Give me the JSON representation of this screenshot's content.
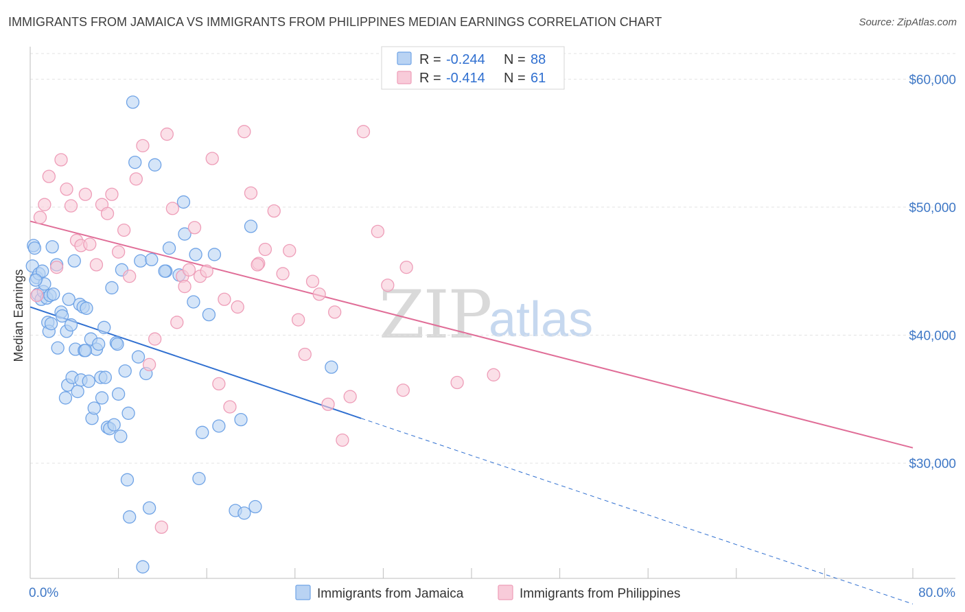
{
  "header": {
    "title": "IMMIGRANTS FROM JAMAICA VS IMMIGRANTS FROM PHILIPPINES MEDIAN EARNINGS CORRELATION CHART",
    "source": "Source: ZipAtlas.com"
  },
  "watermark": {
    "zip": "ZIP",
    "atlas": "atlas"
  },
  "chart_data": {
    "type": "scatter",
    "title": "IMMIGRANTS FROM JAMAICA VS IMMIGRANTS FROM PHILIPPINES MEDIAN EARNINGS CORRELATION CHART",
    "xlabel": "",
    "ylabel": "Median Earnings",
    "xlim": [
      0,
      80
    ],
    "ylim": [
      21000,
      62000
    ],
    "x_tick_labels": {
      "min": "0.0%",
      "max": "80.0%"
    },
    "y_ticks": [
      {
        "value": 30000,
        "label": "$30,000"
      },
      {
        "value": 40000,
        "label": "$40,000"
      },
      {
        "value": 50000,
        "label": "$50,000"
      },
      {
        "value": 60000,
        "label": "$60,000"
      }
    ],
    "grid": true,
    "legend_position": "top-center",
    "series": [
      {
        "name": "Immigrants from Jamaica",
        "color": "#6fa3e6",
        "fill": "#b9d3f3",
        "line_color": "#2f6fd0",
        "stats": {
          "r_label": "R = ",
          "r_value": "-0.244",
          "n_label": "N = ",
          "n_value": "88"
        },
        "trend": {
          "x0": 0,
          "y0": 42200,
          "x1": 30,
          "y1": 33500,
          "x_end": 80,
          "y_end": 19000
        },
        "points": [
          [
            0.2,
            45400
          ],
          [
            0.3,
            47000
          ],
          [
            0.4,
            46800
          ],
          [
            0.6,
            44500
          ],
          [
            0.7,
            43200
          ],
          [
            0.8,
            44800
          ],
          [
            1.0,
            42800
          ],
          [
            1.1,
            45000
          ],
          [
            1.2,
            43400
          ],
          [
            1.3,
            44000
          ],
          [
            1.5,
            42900
          ],
          [
            1.6,
            41000
          ],
          [
            1.7,
            40300
          ],
          [
            1.8,
            43100
          ],
          [
            2.0,
            46900
          ],
          [
            2.1,
            43200
          ],
          [
            2.4,
            45500
          ],
          [
            2.5,
            39000
          ],
          [
            2.8,
            41800
          ],
          [
            2.9,
            41500
          ],
          [
            3.2,
            35100
          ],
          [
            3.3,
            40300
          ],
          [
            3.4,
            36100
          ],
          [
            3.5,
            42800
          ],
          [
            3.7,
            40800
          ],
          [
            3.8,
            36700
          ],
          [
            4.0,
            45800
          ],
          [
            4.1,
            38900
          ],
          [
            4.3,
            35600
          ],
          [
            4.5,
            42400
          ],
          [
            4.6,
            36500
          ],
          [
            4.8,
            42200
          ],
          [
            4.9,
            38800
          ],
          [
            5.1,
            42100
          ],
          [
            5.3,
            36400
          ],
          [
            5.5,
            39700
          ],
          [
            5.6,
            33500
          ],
          [
            5.8,
            34300
          ],
          [
            6.0,
            38900
          ],
          [
            6.2,
            39300
          ],
          [
            6.4,
            36700
          ],
          [
            6.5,
            35100
          ],
          [
            6.7,
            40600
          ],
          [
            6.8,
            36700
          ],
          [
            7.0,
            32800
          ],
          [
            7.2,
            32700
          ],
          [
            7.4,
            43700
          ],
          [
            7.6,
            33000
          ],
          [
            7.8,
            39400
          ],
          [
            8.0,
            35400
          ],
          [
            8.2,
            32100
          ],
          [
            8.3,
            45100
          ],
          [
            8.6,
            37200
          ],
          [
            8.8,
            28700
          ],
          [
            8.9,
            33900
          ],
          [
            9.0,
            25800
          ],
          [
            9.3,
            58200
          ],
          [
            9.5,
            53500
          ],
          [
            9.8,
            38300
          ],
          [
            10.0,
            45800
          ],
          [
            10.2,
            21900
          ],
          [
            10.5,
            37000
          ],
          [
            10.8,
            26500
          ],
          [
            11.0,
            45900
          ],
          [
            11.3,
            53300
          ],
          [
            12.3,
            45000
          ],
          [
            12.6,
            46800
          ],
          [
            13.5,
            44700
          ],
          [
            13.9,
            50400
          ],
          [
            14.0,
            47900
          ],
          [
            14.8,
            42600
          ],
          [
            15.0,
            46300
          ],
          [
            15.3,
            28800
          ],
          [
            15.6,
            32400
          ],
          [
            16.2,
            41600
          ],
          [
            16.7,
            46300
          ],
          [
            17.1,
            32900
          ],
          [
            18.6,
            26300
          ],
          [
            19.1,
            33400
          ],
          [
            19.4,
            26100
          ],
          [
            20.0,
            48500
          ],
          [
            20.4,
            26600
          ],
          [
            27.3,
            37500
          ],
          [
            0.5,
            44300
          ],
          [
            1.9,
            40900
          ],
          [
            5.0,
            38800
          ],
          [
            7.9,
            39300
          ],
          [
            12.2,
            45000
          ]
        ]
      },
      {
        "name": "Immigrants from Philippines",
        "color": "#ee9db8",
        "fill": "#f8cbd9",
        "line_color": "#e06d97",
        "stats": {
          "r_label": "R = ",
          "r_value": "-0.414",
          "n_label": "N = ",
          "n_value": "61"
        },
        "trend": {
          "x0": 0,
          "y0": 48900,
          "x1": 80,
          "y1": 31200
        },
        "points": [
          [
            0.6,
            43100
          ],
          [
            0.9,
            49200
          ],
          [
            1.3,
            50200
          ],
          [
            1.7,
            52400
          ],
          [
            2.4,
            45300
          ],
          [
            2.8,
            53700
          ],
          [
            3.3,
            51400
          ],
          [
            3.7,
            50100
          ],
          [
            4.2,
            47400
          ],
          [
            4.6,
            47000
          ],
          [
            5.0,
            51000
          ],
          [
            5.4,
            47100
          ],
          [
            6.0,
            45500
          ],
          [
            6.5,
            50200
          ],
          [
            7.0,
            49500
          ],
          [
            7.4,
            51000
          ],
          [
            8.0,
            46500
          ],
          [
            8.5,
            48200
          ],
          [
            9.0,
            44600
          ],
          [
            9.6,
            52200
          ],
          [
            10.2,
            54800
          ],
          [
            10.8,
            37700
          ],
          [
            11.3,
            39700
          ],
          [
            11.9,
            25000
          ],
          [
            12.4,
            55700
          ],
          [
            12.9,
            49900
          ],
          [
            13.3,
            41000
          ],
          [
            13.8,
            44600
          ],
          [
            14.4,
            45100
          ],
          [
            14.9,
            48400
          ],
          [
            15.4,
            44600
          ],
          [
            16.0,
            45000
          ],
          [
            16.5,
            53800
          ],
          [
            17.1,
            36200
          ],
          [
            17.6,
            42800
          ],
          [
            18.1,
            34400
          ],
          [
            18.8,
            42200
          ],
          [
            19.4,
            55900
          ],
          [
            20.0,
            51100
          ],
          [
            20.7,
            45600
          ],
          [
            21.3,
            46700
          ],
          [
            22.1,
            49700
          ],
          [
            22.9,
            44800
          ],
          [
            23.5,
            46600
          ],
          [
            24.3,
            41200
          ],
          [
            24.9,
            38500
          ],
          [
            25.6,
            44200
          ],
          [
            26.2,
            43200
          ],
          [
            27.0,
            34600
          ],
          [
            27.6,
            41800
          ],
          [
            28.3,
            31800
          ],
          [
            29.0,
            35200
          ],
          [
            30.2,
            55900
          ],
          [
            31.5,
            48100
          ],
          [
            32.4,
            43900
          ],
          [
            33.8,
            35700
          ],
          [
            34.1,
            45300
          ],
          [
            38.7,
            36300
          ],
          [
            42.0,
            36900
          ],
          [
            20.6,
            45500
          ],
          [
            14.0,
            43800
          ]
        ]
      }
    ]
  }
}
